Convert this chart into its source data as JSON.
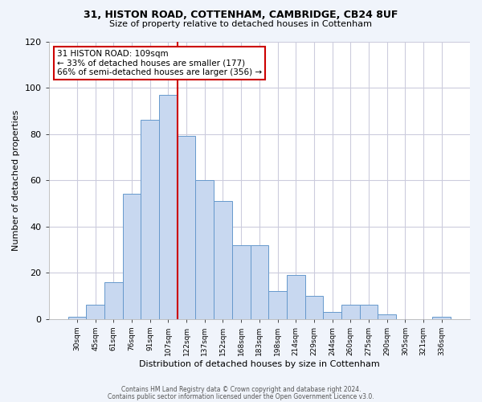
{
  "title": "31, HISTON ROAD, COTTENHAM, CAMBRIDGE, CB24 8UF",
  "subtitle": "Size of property relative to detached houses in Cottenham",
  "xlabel": "Distribution of detached houses by size in Cottenham",
  "ylabel": "Number of detached properties",
  "bin_labels": [
    "30sqm",
    "45sqm",
    "61sqm",
    "76sqm",
    "91sqm",
    "107sqm",
    "122sqm",
    "137sqm",
    "152sqm",
    "168sqm",
    "183sqm",
    "198sqm",
    "214sqm",
    "229sqm",
    "244sqm",
    "260sqm",
    "275sqm",
    "290sqm",
    "305sqm",
    "321sqm",
    "336sqm"
  ],
  "bar_heights": [
    1,
    6,
    16,
    54,
    86,
    97,
    79,
    60,
    51,
    32,
    32,
    12,
    19,
    10,
    3,
    6,
    6,
    2,
    0,
    0,
    1
  ],
  "bar_color": "#c8d8f0",
  "bar_edge_color": "#6699cc",
  "vline_color": "#cc0000",
  "annotation_title": "31 HISTON ROAD: 109sqm",
  "annotation_line1": "← 33% of detached houses are smaller (177)",
  "annotation_line2": "66% of semi-detached houses are larger (356) →",
  "annotation_box_color": "#ffffff",
  "annotation_box_edge": "#cc0000",
  "footer1": "Contains HM Land Registry data © Crown copyright and database right 2024.",
  "footer2": "Contains public sector information licensed under the Open Government Licence v3.0.",
  "ylim": [
    0,
    120
  ],
  "background_color": "#f0f4fb",
  "plot_background": "#ffffff",
  "grid_color": "#ccccdd"
}
